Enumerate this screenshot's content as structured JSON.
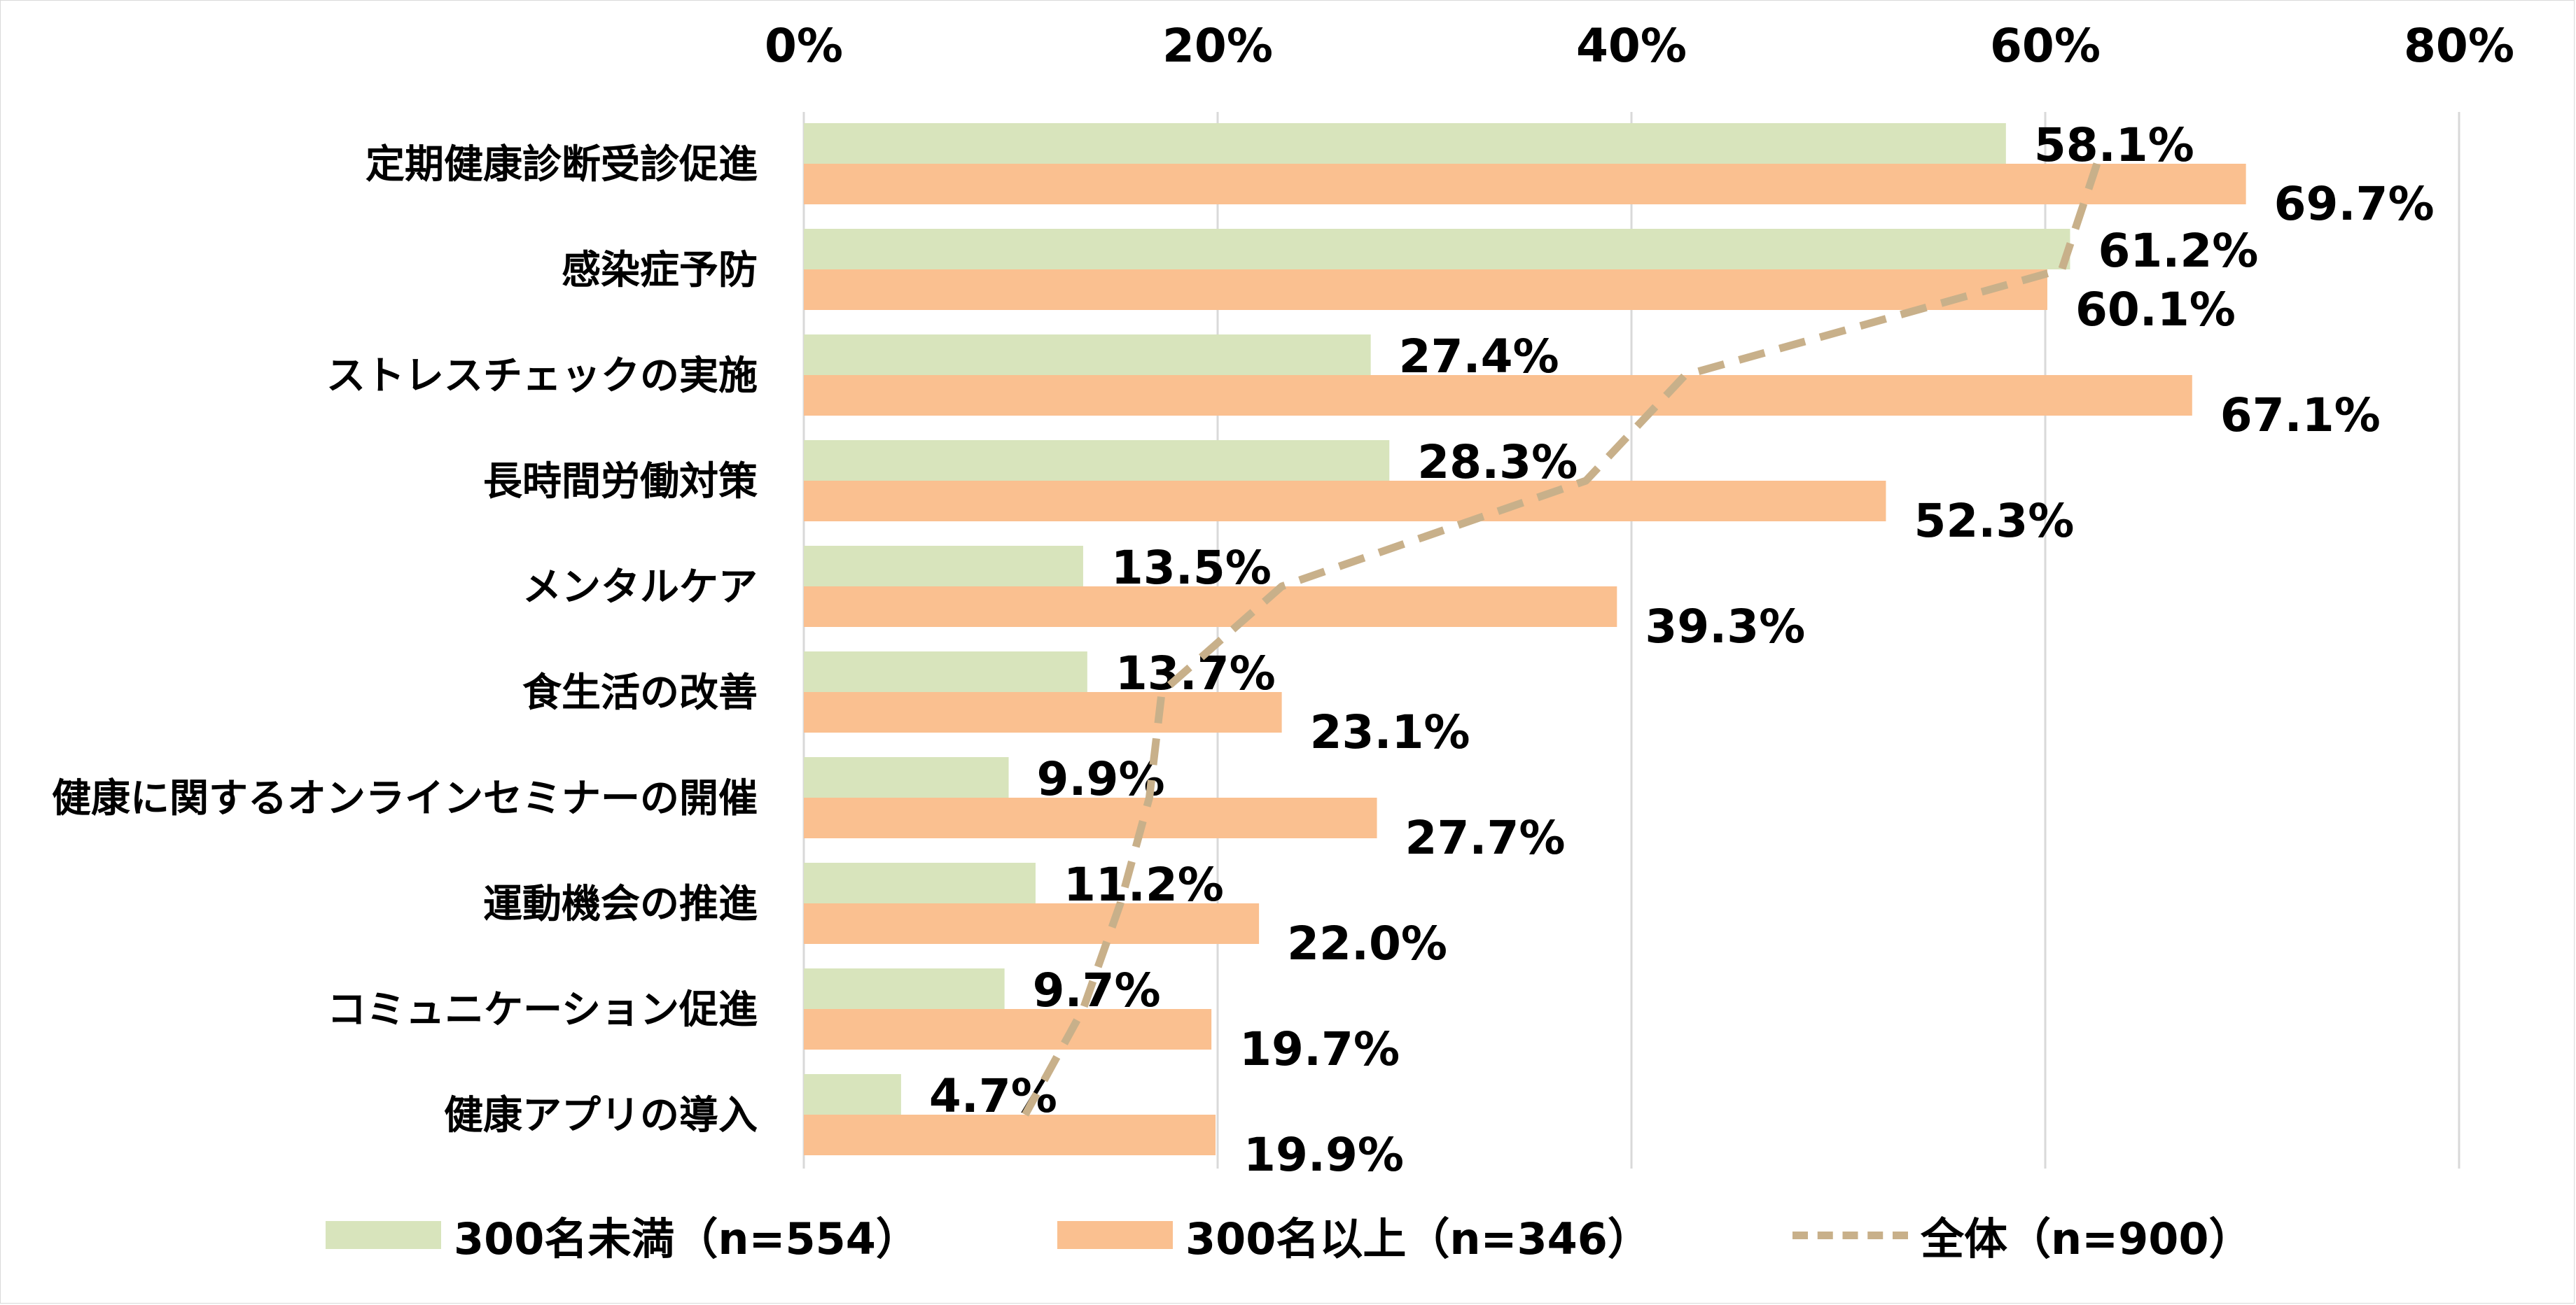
{
  "chart_data": {
    "type": "bar",
    "orientation": "horizontal",
    "categories": [
      "定期健康診断受診促進",
      "感染症予防",
      "ストレスチェックの実施",
      "長時間労働対策",
      "メンタルケア",
      "食生活の改善",
      "健康に関するオンラインセミナーの開催",
      "運動機会の推進",
      "コミュニケーション促進",
      "健康アプリの導入"
    ],
    "series": [
      {
        "name": "300名未満（n=554）",
        "type": "bar",
        "color": "#d8e4bc",
        "values": [
          58.1,
          61.2,
          27.4,
          28.3,
          13.5,
          13.7,
          9.9,
          11.2,
          9.7,
          4.7
        ],
        "labels": [
          "58.1%",
          "61.2%",
          "27.4%",
          "28.3%",
          "13.5%",
          "13.7%",
          "9.9%",
          "11.2%",
          "9.7%",
          "4.7%"
        ]
      },
      {
        "name": "300名以上（n=346）",
        "type": "bar",
        "color": "#fac090",
        "values": [
          69.7,
          60.1,
          67.1,
          52.3,
          39.3,
          23.1,
          27.7,
          22.0,
          19.7,
          19.9
        ],
        "labels": [
          "69.7%",
          "60.1%",
          "67.1%",
          "52.3%",
          "39.3%",
          "23.1%",
          "27.7%",
          "22.0%",
          "19.7%",
          "19.9%"
        ]
      },
      {
        "name": "全体（n=900）",
        "type": "line",
        "style": "dashed",
        "color": "#c8b08a",
        "values": [
          62.5,
          60.8,
          42.6,
          37.8,
          23.1,
          17.3,
          16.7,
          15.3,
          13.5,
          10.7
        ]
      }
    ],
    "xlim": [
      0,
      80
    ],
    "xticks": [
      "0%",
      "20%",
      "40%",
      "60%",
      "80%"
    ],
    "xtick_values": [
      0,
      20,
      40,
      60,
      80
    ],
    "x_axis_position": "top",
    "grid": true,
    "legend_position": "bottom"
  }
}
